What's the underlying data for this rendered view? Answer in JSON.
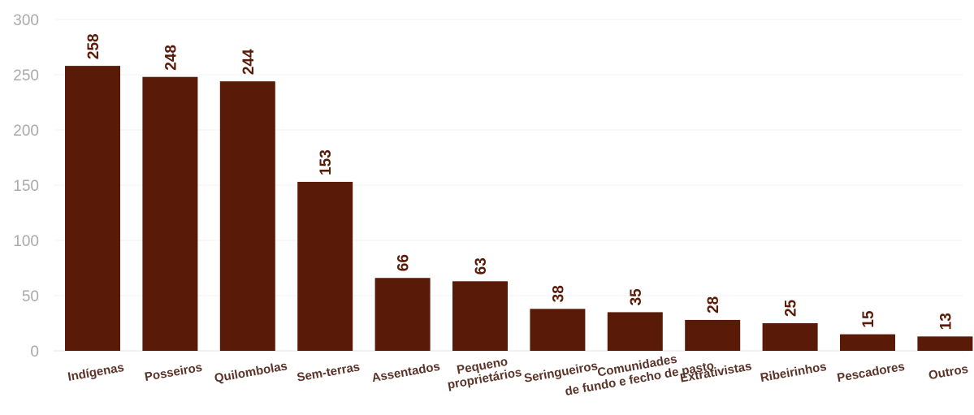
{
  "chart_data": {
    "type": "bar",
    "categories": [
      "Indígenas",
      "Posseiros",
      "Quilombolas",
      "Sem-terras",
      "Assentados",
      [
        "Pequeno",
        "proprietários"
      ],
      "Seringueiros",
      [
        "Comunidades",
        "de fundo e fecho de pasto"
      ],
      "Extrativistas",
      "Ribeirinhos",
      "Pescadores",
      "Outros"
    ],
    "values": [
      258,
      248,
      244,
      153,
      66,
      63,
      38,
      35,
      28,
      25,
      15,
      13
    ],
    "yticks": [
      "0",
      "50",
      "100",
      "150",
      "200",
      "250",
      "300"
    ],
    "ylim": [
      0,
      300
    ],
    "bar_color": "#5a1a08",
    "label_color": "#5a1a08",
    "grid": true
  }
}
